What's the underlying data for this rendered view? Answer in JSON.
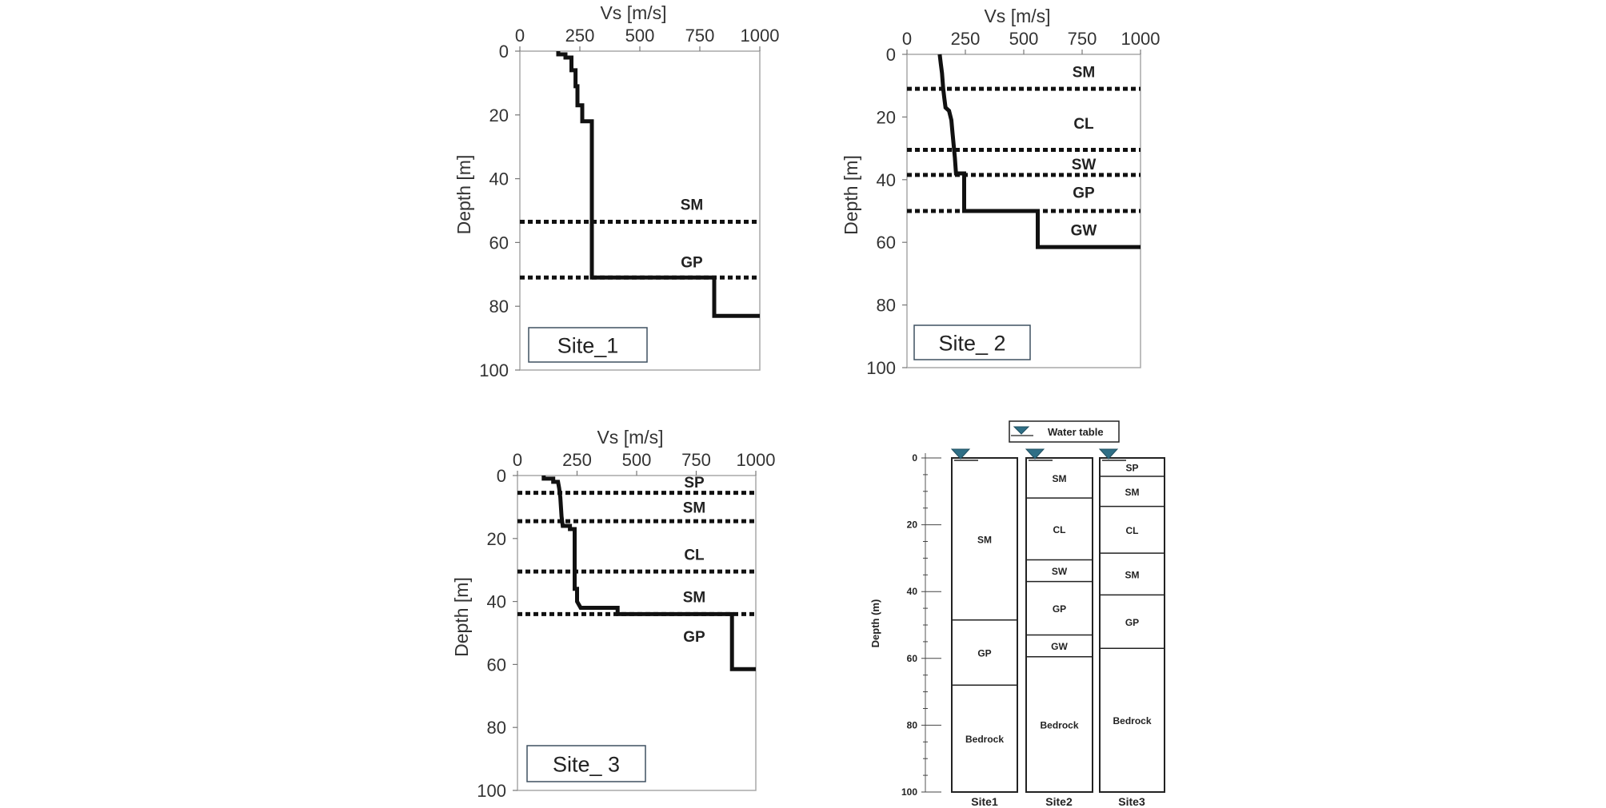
{
  "chart_data": [
    {
      "type": "line",
      "site_label": "Site_1",
      "xlabel": "Vs [m/s]",
      "ylabel": "Depth [m]",
      "xlim": [
        0,
        1000
      ],
      "ylim": [
        0,
        100
      ],
      "xticks": [
        0,
        250,
        500,
        750,
        1000
      ],
      "yticks": [
        0,
        20,
        40,
        60,
        80,
        100
      ],
      "profile": [
        [
          160,
          0
        ],
        [
          160,
          1
        ],
        [
          190,
          1
        ],
        [
          190,
          2
        ],
        [
          215,
          2
        ],
        [
          215,
          6
        ],
        [
          232,
          6
        ],
        [
          232,
          11
        ],
        [
          240,
          11
        ],
        [
          240,
          17
        ],
        [
          260,
          17
        ],
        [
          260,
          22
        ],
        [
          300,
          22
        ],
        [
          300,
          71
        ],
        [
          810,
          71
        ],
        [
          810,
          83
        ],
        [
          1000,
          83
        ]
      ],
      "layers": [
        {
          "name": "SM",
          "label_depth": 48
        },
        {
          "name": "GP",
          "label_depth": 66
        }
      ],
      "boundaries": [
        53.5,
        71
      ]
    },
    {
      "type": "line",
      "site_label": "Site_ 2",
      "xlabel": "Vs [m/s]",
      "ylabel": "Depth [m]",
      "xlim": [
        0,
        1000
      ],
      "ylim": [
        0,
        100
      ],
      "xticks": [
        0,
        250,
        500,
        750,
        1000
      ],
      "yticks": [
        0,
        20,
        40,
        60,
        80,
        100
      ],
      "profile": [
        [
          140,
          0
        ],
        [
          145,
          3
        ],
        [
          150,
          6
        ],
        [
          155,
          11
        ],
        [
          160,
          14
        ],
        [
          165,
          17
        ],
        [
          180,
          18
        ],
        [
          190,
          21
        ],
        [
          195,
          25
        ],
        [
          200,
          29
        ],
        [
          205,
          33
        ],
        [
          210,
          38
        ],
        [
          245,
          38
        ],
        [
          245,
          50
        ],
        [
          560,
          50
        ],
        [
          560,
          61.5
        ],
        [
          1000,
          61.5
        ]
      ],
      "layers": [
        {
          "name": "SM",
          "label_depth": 5.5
        },
        {
          "name": "CL",
          "label_depth": 22
        },
        {
          "name": "SW",
          "label_depth": 35
        },
        {
          "name": "GP",
          "label_depth": 44
        },
        {
          "name": "GW",
          "label_depth": 56
        }
      ],
      "boundaries": [
        11,
        30.5,
        38.5,
        50
      ]
    },
    {
      "type": "line",
      "site_label": "Site_ 3",
      "xlabel": "Vs [m/s]",
      "ylabel": "Depth [m]",
      "xlim": [
        0,
        1000
      ],
      "ylim": [
        0,
        100
      ],
      "xticks": [
        0,
        250,
        500,
        750,
        1000
      ],
      "yticks": [
        0,
        20,
        40,
        60,
        80,
        100
      ],
      "profile": [
        [
          110,
          0
        ],
        [
          110,
          1
        ],
        [
          150,
          1
        ],
        [
          150,
          2
        ],
        [
          170,
          2
        ],
        [
          175,
          4
        ],
        [
          180,
          7
        ],
        [
          185,
          13
        ],
        [
          190,
          16
        ],
        [
          220,
          16
        ],
        [
          220,
          17
        ],
        [
          240,
          17
        ],
        [
          240,
          36
        ],
        [
          250,
          36
        ],
        [
          250,
          40
        ],
        [
          265,
          42
        ],
        [
          420,
          42
        ],
        [
          420,
          44
        ],
        [
          900,
          44
        ],
        [
          900,
          61.5
        ],
        [
          1000,
          61.5
        ]
      ],
      "layers": [
        {
          "name": "SP",
          "label_depth": 2
        },
        {
          "name": "SM",
          "label_depth": 10
        },
        {
          "name": "CL",
          "label_depth": 25
        },
        {
          "name": "SM",
          "label_depth": 38.5
        },
        {
          "name": "GP",
          "label_depth": 51
        }
      ],
      "boundaries": [
        5.5,
        14.5,
        30.5,
        44
      ]
    },
    {
      "type": "table",
      "legend": "Water table",
      "ylabel": "Depth (m)",
      "yticks": [
        0,
        20,
        40,
        60,
        80,
        100
      ],
      "columns": [
        {
          "name": "Site1",
          "layers": [
            {
              "name": "SM",
              "top": 0,
              "bottom": 48.5
            },
            {
              "name": "GP",
              "top": 48.5,
              "bottom": 68
            },
            {
              "name": "Bedrock",
              "top": 68,
              "bottom": 100
            }
          ]
        },
        {
          "name": "Site2",
          "layers": [
            {
              "name": "SM",
              "top": 0,
              "bottom": 12
            },
            {
              "name": "CL",
              "top": 12,
              "bottom": 30.5
            },
            {
              "name": "SW",
              "top": 30.5,
              "bottom": 37
            },
            {
              "name": "GP",
              "top": 37,
              "bottom": 53
            },
            {
              "name": "GW",
              "top": 53,
              "bottom": 59.5
            },
            {
              "name": "Bedrock",
              "top": 59.5,
              "bottom": 100
            }
          ]
        },
        {
          "name": "Site3",
          "layers": [
            {
              "name": "SP",
              "top": 0,
              "bottom": 5.5
            },
            {
              "name": "SM",
              "top": 5.5,
              "bottom": 14.5
            },
            {
              "name": "CL",
              "top": 14.5,
              "bottom": 28.5
            },
            {
              "name": "SM",
              "top": 28.5,
              "bottom": 41
            },
            {
              "name": "GP",
              "top": 41,
              "bottom": 57
            },
            {
              "name": "Bedrock",
              "top": 57,
              "bottom": 100
            }
          ]
        }
      ]
    }
  ]
}
